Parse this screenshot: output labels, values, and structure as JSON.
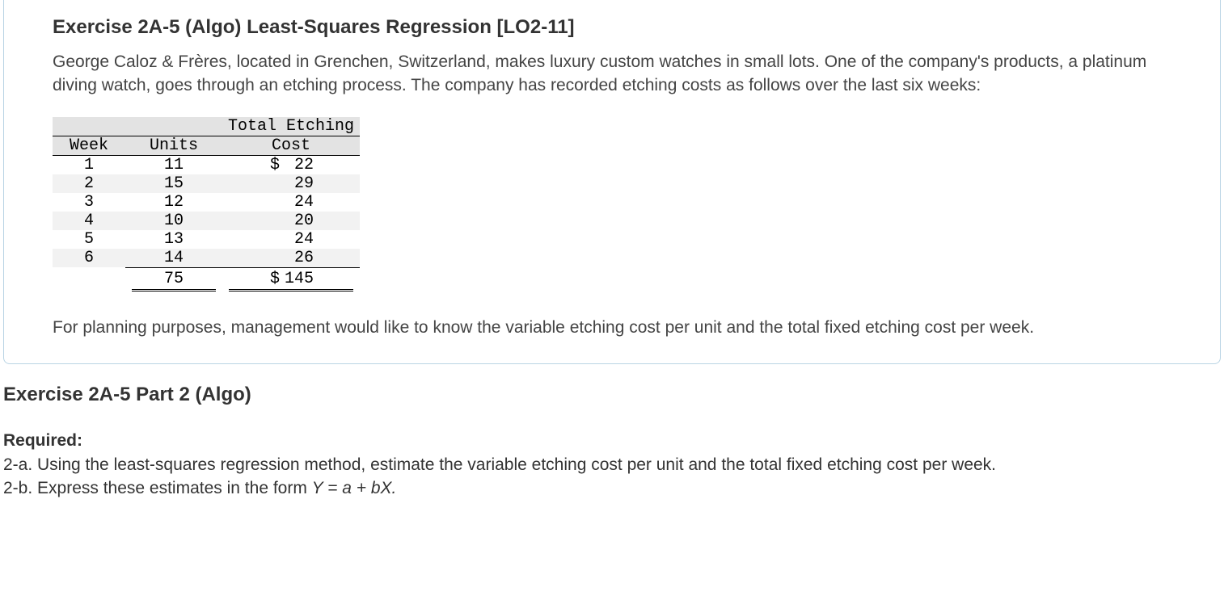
{
  "exercise": {
    "title": "Exercise 2A-5 (Algo) Least-Squares Regression [LO2-11]",
    "intro": "George Caloz & Frères, located in Grenchen, Switzerland, makes luxury custom watches in small lots. One of the company's products, a platinum diving watch, goes through an etching process. The company has recorded etching costs as follows over the last six weeks:",
    "outro": "For planning purposes, management would like to know the variable etching cost per unit and the total fixed etching cost per week."
  },
  "table": {
    "type": "table",
    "header_bg": "#e3e3e3",
    "row_alt_bg": "#f2f2f2",
    "text_color": "#000000",
    "font_family": "Courier New",
    "columns": {
      "week": "Week",
      "units": "Units",
      "cost_line1": "Total Etching",
      "cost_line2": "Cost"
    },
    "currency_symbol": "$",
    "rows": [
      {
        "week": "1",
        "units": "11",
        "cost_sym": "$",
        "cost": "22"
      },
      {
        "week": "2",
        "units": "15",
        "cost_sym": "",
        "cost": "29"
      },
      {
        "week": "3",
        "units": "12",
        "cost_sym": "",
        "cost": "24"
      },
      {
        "week": "4",
        "units": "10",
        "cost_sym": "",
        "cost": "20"
      },
      {
        "week": "5",
        "units": "13",
        "cost_sym": "",
        "cost": "24"
      },
      {
        "week": "6",
        "units": "14",
        "cost_sym": "",
        "cost": "26"
      }
    ],
    "totals": {
      "units": "75",
      "cost_sym": "$",
      "cost": "145"
    }
  },
  "part2": {
    "title": "Exercise 2A-5 Part 2 (Algo)",
    "required_label": "Required:",
    "q_a": "2-a. Using the least-squares regression method, estimate the variable etching cost per unit and the total fixed etching cost per week.",
    "q_b_prefix": "2-b. Express these estimates in the form ",
    "q_b_formula": "Y = a + bX."
  },
  "colors": {
    "panel_border": "#b9d4e4",
    "text_main": "#333333",
    "text_body": "#444444",
    "background": "#ffffff"
  }
}
